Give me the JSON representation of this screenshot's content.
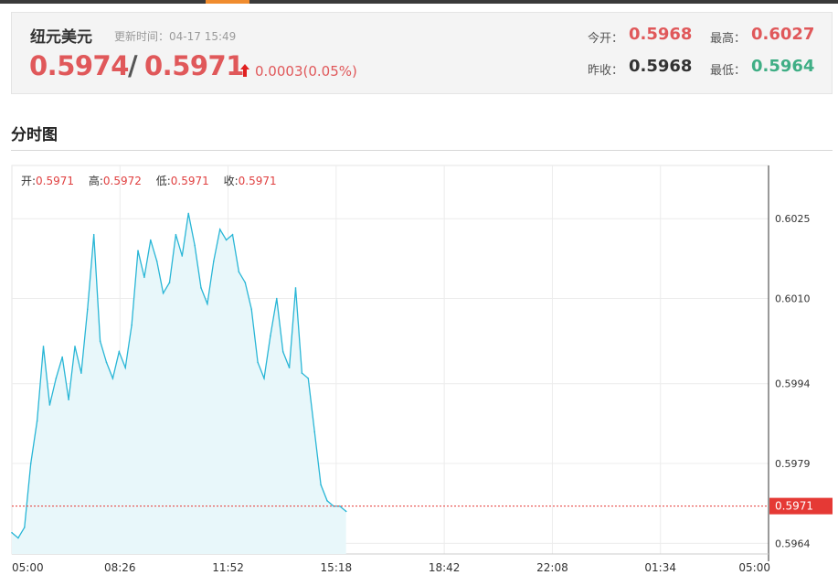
{
  "quote": {
    "name": "纽元美元",
    "update_label": "更新时间：",
    "update_time": "04-17 15:49",
    "bid": "0.5974",
    "separator": "/",
    "ask": "0.5971",
    "change": "0.0003(0.05%)",
    "open_label": "今开：",
    "open": "0.5968",
    "high_label": "最高：",
    "high": "0.6027",
    "prev_close_label": "昨收：",
    "prev_close": "0.5968",
    "low_label": "最低：",
    "low": "0.5964"
  },
  "section": {
    "title": "分时图"
  },
  "ohlc_bar": {
    "open_label": "开:",
    "open": "0.5971",
    "high_label": "高:",
    "high": "0.5972",
    "low_label": "低:",
    "low": "0.5971",
    "close_label": "收:",
    "close": "0.5971"
  },
  "colors": {
    "up": "#e0585a",
    "down": "#3fae85",
    "line": "#29b6d6",
    "area": "#e8f7fa",
    "ref": "#e53935"
  },
  "chart_data": {
    "type": "area",
    "xlabel": "",
    "ylabel": "",
    "x_ticks": [
      "05:00",
      "08:26",
      "11:52",
      "15:18",
      "18:42",
      "22:08",
      "01:34",
      "05:00"
    ],
    "y_ticks": [
      "0.6025",
      "0.6010",
      "0.5994",
      "0.5979",
      "0.5964"
    ],
    "ylim": [
      0.5962,
      0.6035
    ],
    "current_price": "0.5971",
    "grid": true,
    "series": [
      {
        "x": [
          "05:00",
          "05:12",
          "05:24",
          "05:36",
          "05:48",
          "06:00",
          "06:12",
          "06:24",
          "06:36",
          "06:48",
          "07:00",
          "07:12",
          "07:24",
          "07:36",
          "07:48",
          "08:00",
          "08:12",
          "08:24",
          "08:36",
          "08:48",
          "09:00",
          "09:12",
          "09:24",
          "09:36",
          "09:48",
          "10:00",
          "10:12",
          "10:24",
          "10:36",
          "10:48",
          "11:00",
          "11:12",
          "11:24",
          "11:36",
          "11:48",
          "12:00",
          "12:12",
          "12:24",
          "12:36",
          "12:48",
          "13:00",
          "13:12",
          "13:24",
          "13:36",
          "13:48",
          "14:00",
          "14:12",
          "14:24",
          "14:36",
          "14:48",
          "15:00",
          "15:12",
          "15:24",
          "15:36"
        ],
        "values": [
          0.5966,
          0.5965,
          0.5967,
          0.5979,
          0.5987,
          0.6001,
          0.599,
          0.5995,
          0.5999,
          0.5991,
          0.6001,
          0.5996,
          0.6008,
          0.6022,
          0.6002,
          0.5998,
          0.5995,
          0.6,
          0.5997,
          0.6005,
          0.6019,
          0.6014,
          0.6021,
          0.6017,
          0.6011,
          0.6013,
          0.6022,
          0.6018,
          0.6026,
          0.602,
          0.6012,
          0.6009,
          0.6017,
          0.6023,
          0.6021,
          0.6022,
          0.6015,
          0.6013,
          0.6008,
          0.5998,
          0.5995,
          0.6003,
          0.601,
          0.6,
          0.5997,
          0.6012,
          0.5996,
          0.5995,
          0.5985,
          0.5975,
          0.5972,
          0.5971,
          0.5971,
          0.597
        ]
      }
    ]
  }
}
